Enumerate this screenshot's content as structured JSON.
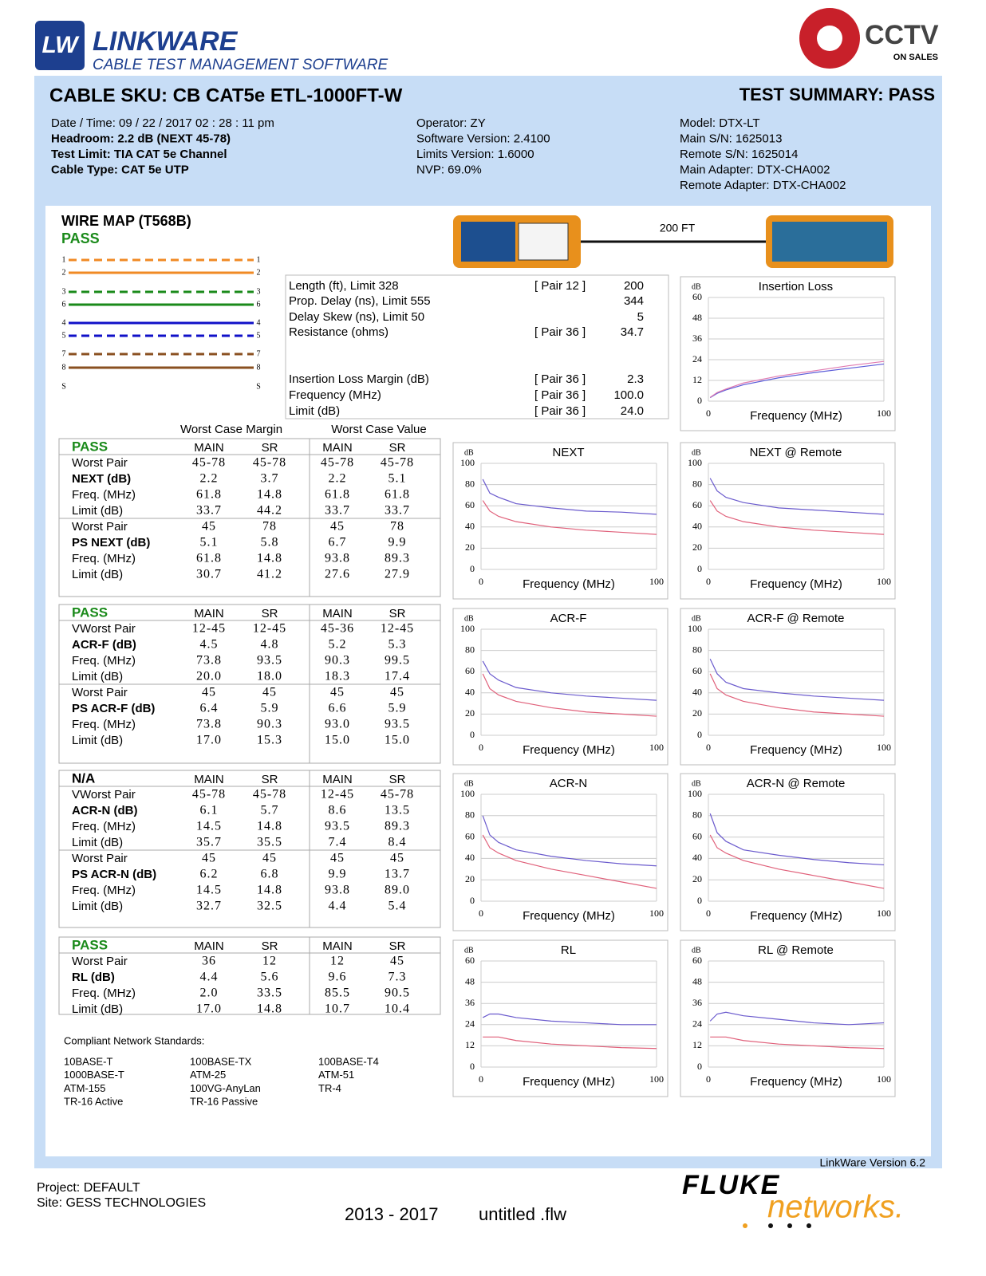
{
  "header": {
    "badge": "LW",
    "title": "LINKWARE",
    "subtitle": "CABLE TEST MANAGEMENT SOFTWARE",
    "brand": "CCTV",
    "brand_sub": "ON SALES"
  },
  "summary": {
    "sku": "CABLE SKU: CB CAT5e ETL-1000FT-W",
    "result": "TEST SUMMARY: PASS",
    "col1": [
      "Date / Time: 09 / 22 / 2017   02 : 28 : 11 pm",
      "Headroom: 2.2 dB (NEXT 45-78)",
      "Test Limit: TIA CAT 5e Channel",
      "Cable Type: CAT 5e UTP"
    ],
    "col2": [
      "Operator: ZY",
      "Software Version: 2.4100",
      "Limits Version: 1.6000",
      "NVP: 69.0%"
    ],
    "col3": [
      "Model: DTX-LT",
      "Main S/N: 1625013",
      "Remote S/N: 1625014",
      "Main Adapter: DTX-CHA002",
      "Remote Adapter: DTX-CHA002"
    ]
  },
  "wire_map": {
    "title": "WIRE MAP (T568B)",
    "status": "PASS",
    "pins": [
      "1",
      "2",
      "3",
      "6",
      "4",
      "5",
      "7",
      "8",
      "S"
    ],
    "length": "200 FT"
  },
  "measurements": [
    [
      "Length (ft), Limit 328",
      "[ Pair  12 ]",
      "200"
    ],
    [
      "Prop. Delay (ns), Limit 555",
      "",
      "344"
    ],
    [
      "Delay Skew (ns), Limit 50",
      "",
      "5"
    ],
    [
      "Resistance (ohms)",
      "[ Pair  36 ]",
      "34.7"
    ],
    [
      "Insertion Loss Margin (dB)",
      "[ Pair  36 ]",
      "2.3"
    ],
    [
      "Frequency (MHz)",
      "[ Pair  36 ]",
      "100.0"
    ],
    [
      "Limit (dB)",
      "[ Pair  36 ]",
      "24.0"
    ]
  ],
  "table_headers": [
    "Worst Case Margin",
    "Worst Case Value"
  ],
  "blocks": [
    {
      "status": "PASS",
      "status_color": "#1a8a1a",
      "cols": [
        "MAIN",
        "SR",
        "MAIN",
        "SR"
      ],
      "rows": [
        [
          "Worst Pair",
          "45-78",
          "45-78",
          "45-78",
          "45-78"
        ],
        [
          "NEXT (dB)",
          "2.2",
          "3.7",
          "2.2",
          "5.1"
        ],
        [
          "Freq. (MHz)",
          "61.8",
          "14.8",
          "61.8",
          "61.8"
        ],
        [
          "Limit (dB)",
          "33.7",
          "44.2",
          "33.7",
          "33.7"
        ],
        [
          "Worst Pair",
          "45",
          "78",
          "45",
          "78"
        ],
        [
          "PS NEXT (dB)",
          "5.1",
          "5.8",
          "6.7",
          "9.9"
        ],
        [
          "Freq. (MHz)",
          "61.8",
          "14.8",
          "93.8",
          "89.3"
        ],
        [
          "Limit (dB)",
          "30.7",
          "41.2",
          "27.6",
          "27.9"
        ]
      ]
    },
    {
      "status": "PASS",
      "status_color": "#1a8a1a",
      "cols": [
        "MAIN",
        "SR",
        "MAIN",
        "SR"
      ],
      "rows": [
        [
          "VWorst Pair",
          "12-45",
          "12-45",
          "45-36",
          "12-45"
        ],
        [
          "ACR-F (dB)",
          "4.5",
          "4.8",
          "5.2",
          "5.3"
        ],
        [
          "Freq. (MHz)",
          "73.8",
          "93.5",
          "90.3",
          "99.5"
        ],
        [
          "Limit (dB)",
          "20.0",
          "18.0",
          "18.3",
          "17.4"
        ],
        [
          "Worst Pair",
          "45",
          "45",
          "45",
          "45"
        ],
        [
          "PS ACR-F (dB)",
          "6.4",
          "5.9",
          "6.6",
          "5.9"
        ],
        [
          "Freq. (MHz)",
          "73.8",
          "90.3",
          "93.0",
          "93.5"
        ],
        [
          "Limit (dB)",
          "17.0",
          "15.3",
          "15.0",
          "15.0"
        ]
      ]
    },
    {
      "status": "N/A",
      "status_color": "#000000",
      "cols": [
        "MAIN",
        "SR",
        "MAIN",
        "SR"
      ],
      "rows": [
        [
          "VWorst Pair",
          "45-78",
          "45-78",
          "12-45",
          "45-78"
        ],
        [
          "ACR-N (dB)",
          "6.1",
          "5.7",
          "8.6",
          "13.5"
        ],
        [
          "Freq. (MHz)",
          "14.5",
          "14.8",
          "93.5",
          "89.3"
        ],
        [
          "Limit (dB)",
          "35.7",
          "35.5",
          "7.4",
          "8.4"
        ],
        [
          "Worst Pair",
          "45",
          "45",
          "45",
          "45"
        ],
        [
          "PS ACR-N (dB)",
          "6.2",
          "6.8",
          "9.9",
          "13.7"
        ],
        [
          "Freq. (MHz)",
          "14.5",
          "14.8",
          "93.8",
          "89.0"
        ],
        [
          "Limit (dB)",
          "32.7",
          "32.5",
          "4.4",
          "5.4"
        ]
      ]
    },
    {
      "status": "PASS",
      "status_color": "#1a8a1a",
      "cols": [
        "MAIN",
        "SR",
        "MAIN",
        "SR"
      ],
      "rows": [
        [
          "Worst Pair",
          "36",
          "12",
          "12",
          "45"
        ],
        [
          "RL (dB)",
          "4.4",
          "5.6",
          "9.6",
          "7.3"
        ],
        [
          "Freq. (MHz)",
          "2.0",
          "33.5",
          "85.5",
          "90.5"
        ],
        [
          "Limit (dB)",
          "17.0",
          "14.8",
          "10.7",
          "10.4"
        ]
      ]
    }
  ],
  "standards": {
    "title": "Compliant Network Standards:",
    "columns": [
      [
        "10BASE-T",
        "1000BASE-T",
        "ATM-155",
        "TR-16 Active"
      ],
      [
        "100BASE-TX",
        "ATM-25",
        "100VG-AnyLan",
        "TR-16 Passive"
      ],
      [
        "100BASE-T4",
        "ATM-51",
        "TR-4"
      ]
    ]
  },
  "graphs": [
    {
      "type": "line",
      "title": "Insertion Loss",
      "ylabel": "dB",
      "xlabel": "Frequency (MHz)",
      "xlim": [
        0,
        100
      ],
      "xticks": [
        0,
        100
      ],
      "ylim": [
        0,
        60
      ],
      "yticks": [
        0,
        12,
        24,
        36,
        48,
        60
      ],
      "x": [
        1,
        5,
        10,
        20,
        40,
        60,
        80,
        100
      ],
      "series": [
        {
          "color": "#5a5ad8",
          "values": [
            2,
            4.5,
            6.5,
            9.5,
            13.5,
            16.5,
            19,
            21.5
          ]
        },
        {
          "color": "#e07ab0",
          "values": [
            2.2,
            5,
            7,
            10.5,
            14.5,
            17.5,
            20.5,
            23
          ]
        }
      ]
    },
    {
      "type": "line",
      "title": "NEXT",
      "ylabel": "dB",
      "xlabel": "Frequency (MHz)",
      "xlim": [
        0,
        100
      ],
      "xticks": [
        0,
        100
      ],
      "ylim": [
        0,
        100
      ],
      "yticks": [
        0,
        20,
        40,
        60,
        80,
        100
      ],
      "x": [
        1,
        5,
        10,
        20,
        40,
        60,
        80,
        100
      ],
      "series": [
        {
          "color": "#6a5acd",
          "values": [
            85,
            72,
            68,
            62,
            58,
            55,
            54,
            52
          ]
        },
        {
          "color": "#e0607a",
          "values": [
            65,
            55,
            50,
            45,
            40,
            37,
            35,
            33
          ]
        }
      ]
    },
    {
      "type": "line",
      "title": "NEXT @ Remote",
      "ylabel": "dB",
      "xlabel": "Frequency (MHz)",
      "xlim": [
        0,
        100
      ],
      "xticks": [
        0,
        100
      ],
      "ylim": [
        0,
        100
      ],
      "yticks": [
        0,
        20,
        40,
        60,
        80,
        100
      ],
      "x": [
        1,
        5,
        10,
        20,
        40,
        60,
        80,
        100
      ],
      "series": [
        {
          "color": "#6a5acd",
          "values": [
            86,
            74,
            68,
            63,
            58,
            56,
            54,
            52
          ]
        },
        {
          "color": "#e0607a",
          "values": [
            65,
            55,
            50,
            45,
            40,
            37,
            35,
            33
          ]
        }
      ]
    },
    {
      "type": "line",
      "title": "ACR-F",
      "ylabel": "dB",
      "xlabel": "Frequency (MHz)",
      "xlim": [
        0,
        100
      ],
      "xticks": [
        0,
        100
      ],
      "ylim": [
        0,
        100
      ],
      "yticks": [
        0,
        20,
        40,
        60,
        80,
        100
      ],
      "x": [
        1,
        5,
        10,
        20,
        40,
        60,
        80,
        100
      ],
      "series": [
        {
          "color": "#6a5acd",
          "values": [
            70,
            58,
            52,
            45,
            40,
            37,
            35,
            33
          ]
        },
        {
          "color": "#e0607a",
          "values": [
            58,
            44,
            38,
            32,
            26,
            22,
            20,
            18
          ]
        }
      ]
    },
    {
      "type": "line",
      "title": "ACR-F @ Remote",
      "ylabel": "dB",
      "xlabel": "Frequency (MHz)",
      "xlim": [
        0,
        100
      ],
      "xticks": [
        0,
        100
      ],
      "ylim": [
        0,
        100
      ],
      "yticks": [
        0,
        20,
        40,
        60,
        80,
        100
      ],
      "x": [
        1,
        5,
        10,
        20,
        40,
        60,
        80,
        100
      ],
      "series": [
        {
          "color": "#6a5acd",
          "values": [
            72,
            58,
            50,
            44,
            40,
            37,
            35,
            33
          ]
        },
        {
          "color": "#e0607a",
          "values": [
            58,
            44,
            38,
            32,
            26,
            22,
            20,
            18
          ]
        }
      ]
    },
    {
      "type": "line",
      "title": "ACR-N",
      "ylabel": "dB",
      "xlabel": "Frequency (MHz)",
      "xlim": [
        0,
        100
      ],
      "xticks": [
        0,
        100
      ],
      "ylim": [
        0,
        100
      ],
      "yticks": [
        0,
        20,
        40,
        60,
        80,
        100
      ],
      "x": [
        1,
        5,
        10,
        20,
        40,
        60,
        80,
        100
      ],
      "series": [
        {
          "color": "#6a5acd",
          "values": [
            80,
            62,
            55,
            48,
            42,
            38,
            35,
            33
          ]
        },
        {
          "color": "#e0607a",
          "values": [
            62,
            50,
            45,
            38,
            30,
            24,
            18,
            12
          ]
        }
      ]
    },
    {
      "type": "line",
      "title": "ACR-N @ Remote",
      "ylabel": "dB",
      "xlabel": "Frequency (MHz)",
      "xlim": [
        0,
        100
      ],
      "xticks": [
        0,
        100
      ],
      "ylim": [
        0,
        100
      ],
      "yticks": [
        0,
        20,
        40,
        60,
        80,
        100
      ],
      "x": [
        1,
        5,
        10,
        20,
        40,
        60,
        80,
        100
      ],
      "series": [
        {
          "color": "#6a5acd",
          "values": [
            82,
            64,
            56,
            48,
            43,
            39,
            36,
            34
          ]
        },
        {
          "color": "#e0607a",
          "values": [
            62,
            50,
            45,
            38,
            30,
            24,
            18,
            12
          ]
        }
      ]
    },
    {
      "type": "line",
      "title": "RL",
      "ylabel": "dB",
      "xlabel": "Frequency (MHz)",
      "xlim": [
        0,
        100
      ],
      "xticks": [
        0,
        100
      ],
      "ylim": [
        0,
        60
      ],
      "yticks": [
        0,
        12,
        24,
        36,
        48,
        60
      ],
      "x": [
        1,
        5,
        10,
        20,
        40,
        60,
        80,
        100
      ],
      "series": [
        {
          "color": "#6a5acd",
          "values": [
            28,
            30,
            30,
            28,
            26,
            25,
            24,
            24
          ]
        },
        {
          "color": "#e0607a",
          "values": [
            17,
            17,
            17,
            15,
            13,
            12,
            11,
            10.5
          ]
        }
      ]
    },
    {
      "type": "line",
      "title": "RL @ Remote",
      "ylabel": "dB",
      "xlabel": "Frequency (MHz)",
      "xlim": [
        0,
        100
      ],
      "xticks": [
        0,
        100
      ],
      "ylim": [
        0,
        60
      ],
      "yticks": [
        0,
        12,
        24,
        36,
        48,
        60
      ],
      "x": [
        1,
        5,
        10,
        20,
        40,
        60,
        80,
        100
      ],
      "series": [
        {
          "color": "#6a5acd",
          "values": [
            26,
            30,
            31,
            29,
            27,
            25,
            24,
            25
          ]
        },
        {
          "color": "#e0607a",
          "values": [
            17,
            17,
            17,
            15,
            13,
            12,
            11,
            10.5
          ]
        }
      ]
    }
  ],
  "footer": {
    "version": "LinkWare Version 6.2",
    "project": "Project: DEFAULT",
    "site": "Site: GESS TECHNOLOGIES",
    "years": "2013 - 2017",
    "file": "untitled .flw",
    "brand": "FLUKE",
    "brand_sub": "networks."
  }
}
